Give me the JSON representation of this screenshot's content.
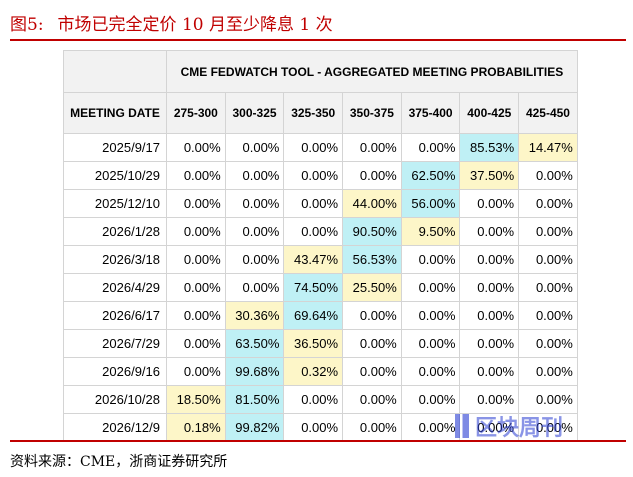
{
  "figure": {
    "number": "图5:",
    "title": "市场已完全定价 10 月至少降息 1 次"
  },
  "table": {
    "tool_title": "CME FEDWATCH TOOL - AGGREGATED MEETING PROBABILITIES",
    "date_header": "MEETING DATE",
    "columns": [
      "275-300",
      "300-325",
      "325-350",
      "350-375",
      "375-400",
      "400-425",
      "425-450"
    ],
    "rows": [
      {
        "date": "2025/9/17",
        "values": [
          "0.00%",
          "0.00%",
          "0.00%",
          "0.00%",
          "0.00%",
          "85.53%",
          "14.47%"
        ]
      },
      {
        "date": "2025/10/29",
        "values": [
          "0.00%",
          "0.00%",
          "0.00%",
          "0.00%",
          "62.50%",
          "37.50%",
          "0.00%"
        ]
      },
      {
        "date": "2025/12/10",
        "values": [
          "0.00%",
          "0.00%",
          "0.00%",
          "44.00%",
          "56.00%",
          "0.00%",
          "0.00%"
        ]
      },
      {
        "date": "2026/1/28",
        "values": [
          "0.00%",
          "0.00%",
          "0.00%",
          "90.50%",
          "9.50%",
          "0.00%",
          "0.00%"
        ]
      },
      {
        "date": "2026/3/18",
        "values": [
          "0.00%",
          "0.00%",
          "43.47%",
          "56.53%",
          "0.00%",
          "0.00%",
          "0.00%"
        ]
      },
      {
        "date": "2026/4/29",
        "values": [
          "0.00%",
          "0.00%",
          "74.50%",
          "25.50%",
          "0.00%",
          "0.00%",
          "0.00%"
        ]
      },
      {
        "date": "2026/6/17",
        "values": [
          "0.00%",
          "30.36%",
          "69.64%",
          "0.00%",
          "0.00%",
          "0.00%",
          "0.00%"
        ]
      },
      {
        "date": "2026/7/29",
        "values": [
          "0.00%",
          "63.50%",
          "36.50%",
          "0.00%",
          "0.00%",
          "0.00%",
          "0.00%"
        ]
      },
      {
        "date": "2026/9/16",
        "values": [
          "0.00%",
          "99.68%",
          "0.32%",
          "0.00%",
          "0.00%",
          "0.00%",
          "0.00%"
        ]
      },
      {
        "date": "2026/10/28",
        "values": [
          "18.50%",
          "81.50%",
          "0.00%",
          "0.00%",
          "0.00%",
          "0.00%",
          "0.00%"
        ]
      },
      {
        "date": "2026/12/9",
        "values": [
          "0.18%",
          "99.82%",
          "0.00%",
          "0.00%",
          "0.00%",
          "0.00%",
          "0.00%"
        ]
      }
    ],
    "highlights": [
      {
        "row": 0,
        "col": 5,
        "color": "#bff0f5"
      },
      {
        "row": 0,
        "col": 6,
        "color": "#fdf6c8"
      },
      {
        "row": 1,
        "col": 4,
        "color": "#bff0f5"
      },
      {
        "row": 1,
        "col": 5,
        "color": "#fdf6c8"
      },
      {
        "row": 2,
        "col": 3,
        "color": "#fdf6c8"
      },
      {
        "row": 2,
        "col": 4,
        "color": "#bff0f5"
      },
      {
        "row": 3,
        "col": 3,
        "color": "#bff0f5"
      },
      {
        "row": 3,
        "col": 4,
        "color": "#fdf6c8"
      },
      {
        "row": 4,
        "col": 2,
        "color": "#fdf6c8"
      },
      {
        "row": 4,
        "col": 3,
        "color": "#bff0f5"
      },
      {
        "row": 5,
        "col": 2,
        "color": "#bff0f5"
      },
      {
        "row": 5,
        "col": 3,
        "color": "#fdf6c8"
      },
      {
        "row": 6,
        "col": 1,
        "color": "#fdf6c8"
      },
      {
        "row": 6,
        "col": 2,
        "color": "#bff0f5"
      },
      {
        "row": 7,
        "col": 1,
        "color": "#bff0f5"
      },
      {
        "row": 7,
        "col": 2,
        "color": "#fdf6c8"
      },
      {
        "row": 8,
        "col": 1,
        "color": "#bff0f5"
      },
      {
        "row": 8,
        "col": 2,
        "color": "#fdf6c8"
      },
      {
        "row": 9,
        "col": 0,
        "color": "#fdf6c8"
      },
      {
        "row": 9,
        "col": 1,
        "color": "#bff0f5"
      },
      {
        "row": 10,
        "col": 0,
        "color": "#fdf6c8"
      },
      {
        "row": 10,
        "col": 1,
        "color": "#bff0f5"
      }
    ]
  },
  "source": "资料来源：CME，浙商证券研究所",
  "watermark": "区块周刊",
  "colors": {
    "title_red": "#c00000",
    "rule_red": "#c00000",
    "highlight_cyan": "#bff0f5",
    "highlight_yellow": "#fdf6c8",
    "header_gray": "#f2f2f2"
  }
}
